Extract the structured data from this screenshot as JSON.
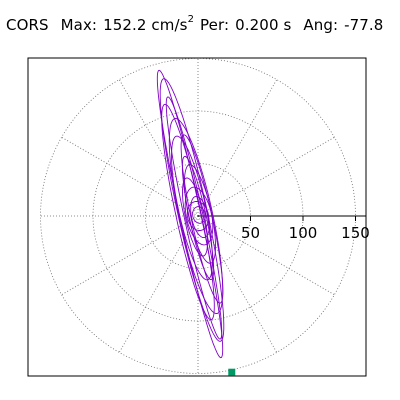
{
  "header": {
    "station": "CORS",
    "max_label": "Max:",
    "max_value": "152.2",
    "max_unit_base": "cm/s",
    "max_unit_exp": "2",
    "per_label": "Per:",
    "per_value": "0.200 s",
    "ang_label": "Ang:",
    "ang_value": "-77.8"
  },
  "chart_data": {
    "type": "scatter",
    "subtype": "polar-orbit",
    "ring_values": [
      50,
      100,
      150
    ],
    "tick_labels": [
      "50",
      "100",
      "150"
    ],
    "max_radius": 152.2,
    "peak_point": {
      "value": 152.2,
      "angle_deg": -77.8
    },
    "spokes_every_deg": 30,
    "grid": true,
    "colors": {
      "trace": "#8000c8",
      "grid": "#6a6a6a",
      "marker": "#009966",
      "axis": "#000000"
    }
  }
}
